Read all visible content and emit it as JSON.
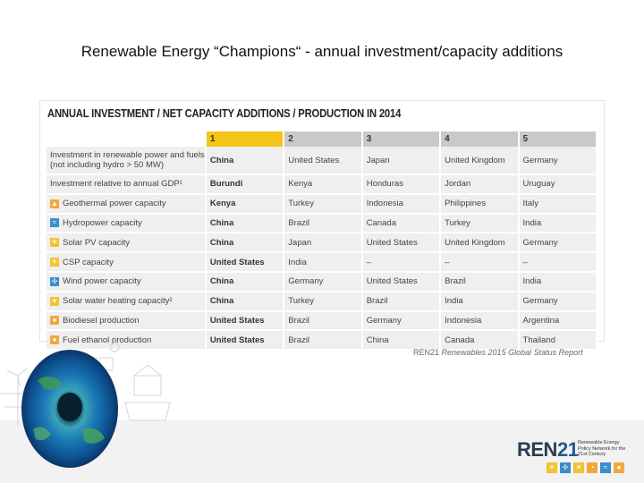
{
  "slide": {
    "title": "Renewable Energy “Champions“ - annual investment/capacity additions",
    "source_prefix": "REN21 ",
    "source_italic": "Renewables 2015 Global Status Report"
  },
  "table": {
    "heading": "ANNUAL INVESTMENT / NET CAPACITY ADDITIONS / PRODUCTION IN 2014",
    "ranks": [
      "1",
      "2",
      "3",
      "4",
      "5"
    ],
    "rows": [
      {
        "label": "Investment in renewable power and fuels (not including hydro > 50 MW)",
        "icon": "",
        "values": [
          "China",
          "United States",
          "Japan",
          "United Kingdom",
          "Germany"
        ]
      },
      {
        "label": "Investment relative to annual GDP¹",
        "icon": "",
        "values": [
          "Burundi",
          "Kenya",
          "Honduras",
          "Jordan",
          "Uruguay"
        ]
      },
      {
        "label": "Geothermal power capacity",
        "icon": "geothermal-icon",
        "values": [
          "Kenya",
          "Turkey",
          "Indonesia",
          "Philippines",
          "Italy"
        ]
      },
      {
        "label": "Hydropower capacity",
        "icon": "hydropower-icon",
        "values": [
          "China",
          "Brazil",
          "Canada",
          "Turkey",
          "India"
        ]
      },
      {
        "label": "Solar PV capacity",
        "icon": "solar-pv-icon",
        "values": [
          "China",
          "Japan",
          "United States",
          "United Kingdom",
          "Germany"
        ]
      },
      {
        "label": "CSP capacity",
        "icon": "csp-icon",
        "values": [
          "United States",
          "India",
          "–",
          "–",
          "–"
        ]
      },
      {
        "label": "Wind power capacity",
        "icon": "wind-icon",
        "values": [
          "China",
          "Germany",
          "United States",
          "Brazil",
          "India"
        ]
      },
      {
        "label": "Solar water heating capacity²",
        "icon": "solar-thermal-icon",
        "values": [
          "China",
          "Turkey",
          "Brazil",
          "India",
          "Germany"
        ]
      },
      {
        "label": "Biodiesel production",
        "icon": "biodiesel-icon",
        "values": [
          "United States",
          "Brazil",
          "Germany",
          "Indonesia",
          "Argentina"
        ]
      },
      {
        "label": "Fuel ethanol production",
        "icon": "ethanol-icon",
        "values": [
          "United States",
          "Brazil",
          "China",
          "Canada",
          "Thailand"
        ]
      }
    ]
  },
  "logo": {
    "name_a": "REN",
    "name_b": "21",
    "tagline": "Renewable Energy Policy Network for the 21st Century"
  },
  "colors": {
    "rank1": "#f4c518",
    "header": "#c9c9c9",
    "row": "#efefef"
  }
}
